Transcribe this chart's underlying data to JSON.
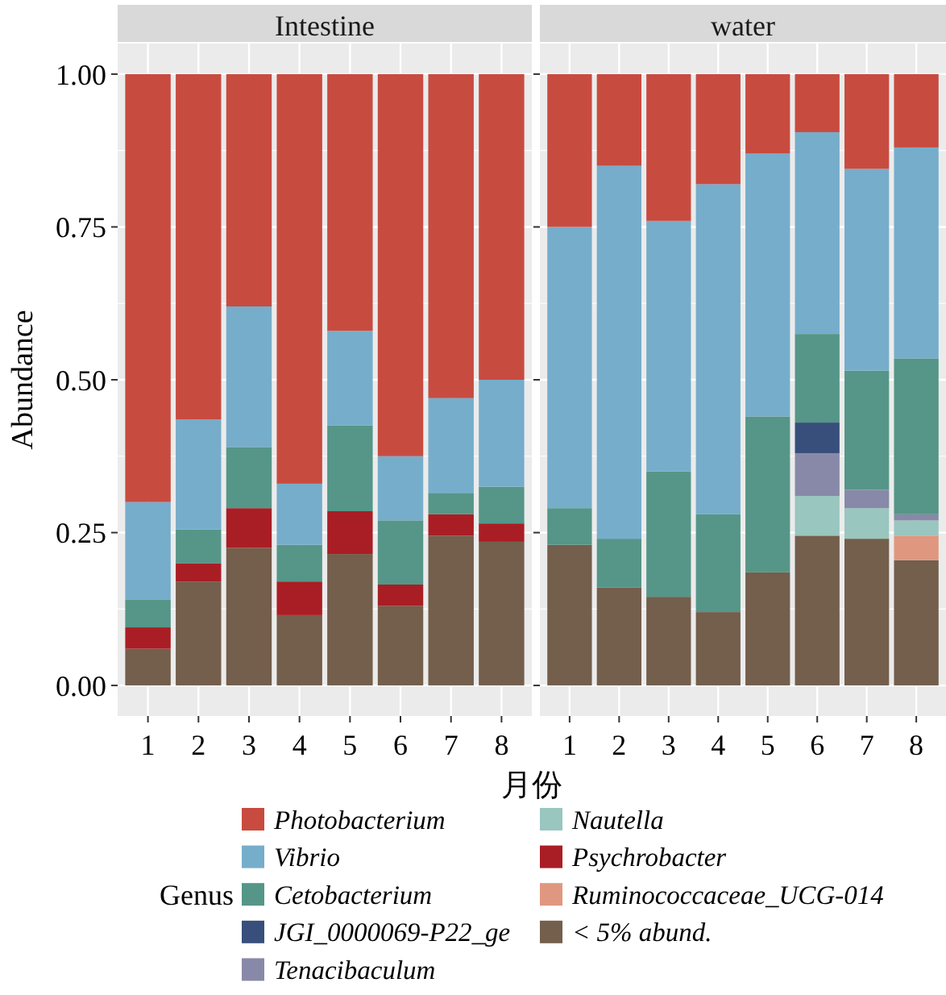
{
  "chart_data": [
    {
      "type": "bar",
      "title": "Intestine",
      "xlabel": "月份",
      "ylabel": "Abundance",
      "legend_title": "Genus",
      "stacked": true,
      "categories": [
        "1",
        "2",
        "3",
        "4",
        "5",
        "6",
        "7",
        "8"
      ],
      "ylim": [
        -0.05,
        1.05
      ],
      "yticks": [
        {
          "value": 0,
          "label": "0.00"
        },
        {
          "value": 0.25,
          "label": "0.25"
        },
        {
          "value": 0.5,
          "label": "0.50"
        },
        {
          "value": 0.75,
          "label": "0.75"
        },
        {
          "value": 1,
          "label": "1.00"
        }
      ],
      "grid": true,
      "legend": "bottom",
      "series": [
        {
          "name": "< 5% abund.",
          "color": "#745e4c",
          "values": [
            0.06,
            0.17,
            0.225,
            0.115,
            0.215,
            0.13,
            0.245,
            0.235
          ]
        },
        {
          "name": "Ruminococcaceae_UCG-014",
          "color": "#e0977f",
          "values": [
            0,
            0,
            0,
            0,
            0,
            0,
            0,
            0
          ]
        },
        {
          "name": "Psychrobacter",
          "color": "#a91e24",
          "values": [
            0.035,
            0.03,
            0.065,
            0.055,
            0.07,
            0.035,
            0.035,
            0.03
          ]
        },
        {
          "name": "Nautella",
          "color": "#99c6bf",
          "values": [
            0,
            0,
            0,
            0,
            0,
            0,
            0,
            0
          ]
        },
        {
          "name": "Tenacibaculum",
          "color": "#8889a8",
          "values": [
            0,
            0,
            0,
            0,
            0,
            0,
            0,
            0
          ]
        },
        {
          "name": "JGI_0000069-P22_ge",
          "color": "#374f7a",
          "values": [
            0,
            0,
            0,
            0,
            0,
            0,
            0,
            0
          ]
        },
        {
          "name": "Cetobacterium",
          "color": "#559688",
          "values": [
            0.045,
            0.055,
            0.1,
            0.06,
            0.14,
            0.105,
            0.035,
            0.06
          ]
        },
        {
          "name": "Vibrio",
          "color": "#76adcb",
          "values": [
            0.16,
            0.18,
            0.23,
            0.1,
            0.155,
            0.105,
            0.155,
            0.175
          ]
        },
        {
          "name": "Photobacterium",
          "color": "#c84b40",
          "values": [
            0.7,
            0.565,
            0.38,
            0.67,
            0.42,
            0.625,
            0.53,
            0.5
          ]
        }
      ]
    },
    {
      "type": "bar",
      "title": "water",
      "stacked": true,
      "categories": [
        "1",
        "2",
        "3",
        "4",
        "5",
        "6",
        "7",
        "8"
      ],
      "ylim": [
        -0.05,
        1.05
      ],
      "yticks": [
        {
          "value": 0,
          "label": null
        },
        {
          "value": 0.25,
          "label": null
        },
        {
          "value": 0.5,
          "label": null
        },
        {
          "value": 0.75,
          "label": null
        },
        {
          "value": 1,
          "label": null
        }
      ],
      "tick_labels": "x",
      "grid": true,
      "series": [
        {
          "color": "#745e4c",
          "values": [
            0.23,
            0.16,
            0.145,
            0.12,
            0.185,
            0.245,
            0.24,
            0.205
          ]
        },
        {
          "color": "#e0977f",
          "values": [
            0,
            0,
            0,
            0,
            0,
            0,
            0,
            0.04
          ]
        },
        {
          "color": "#a91e24",
          "values": [
            0,
            0,
            0,
            0,
            0,
            0,
            0,
            0
          ]
        },
        {
          "color": "#99c6bf",
          "values": [
            0,
            0,
            0,
            0,
            0,
            0.065,
            0.05,
            0.025
          ]
        },
        {
          "color": "#8889a8",
          "values": [
            0,
            0,
            0,
            0,
            0,
            0.07,
            0.03,
            0.01
          ]
        },
        {
          "color": "#374f7a",
          "values": [
            0,
            0,
            0,
            0,
            0,
            0.05,
            0,
            0
          ]
        },
        {
          "color": "#559688",
          "values": [
            0.06,
            0.08,
            0.205,
            0.16,
            0.255,
            0.145,
            0.195,
            0.255
          ]
        },
        {
          "color": "#76adcb",
          "values": [
            0.46,
            0.61,
            0.41,
            0.54,
            0.43,
            0.33,
            0.33,
            0.345
          ]
        },
        {
          "color": "#c84b40",
          "values": [
            0.25,
            0.15,
            0.24,
            0.18,
            0.13,
            0.095,
            0.155,
            0.12
          ]
        }
      ]
    }
  ]
}
